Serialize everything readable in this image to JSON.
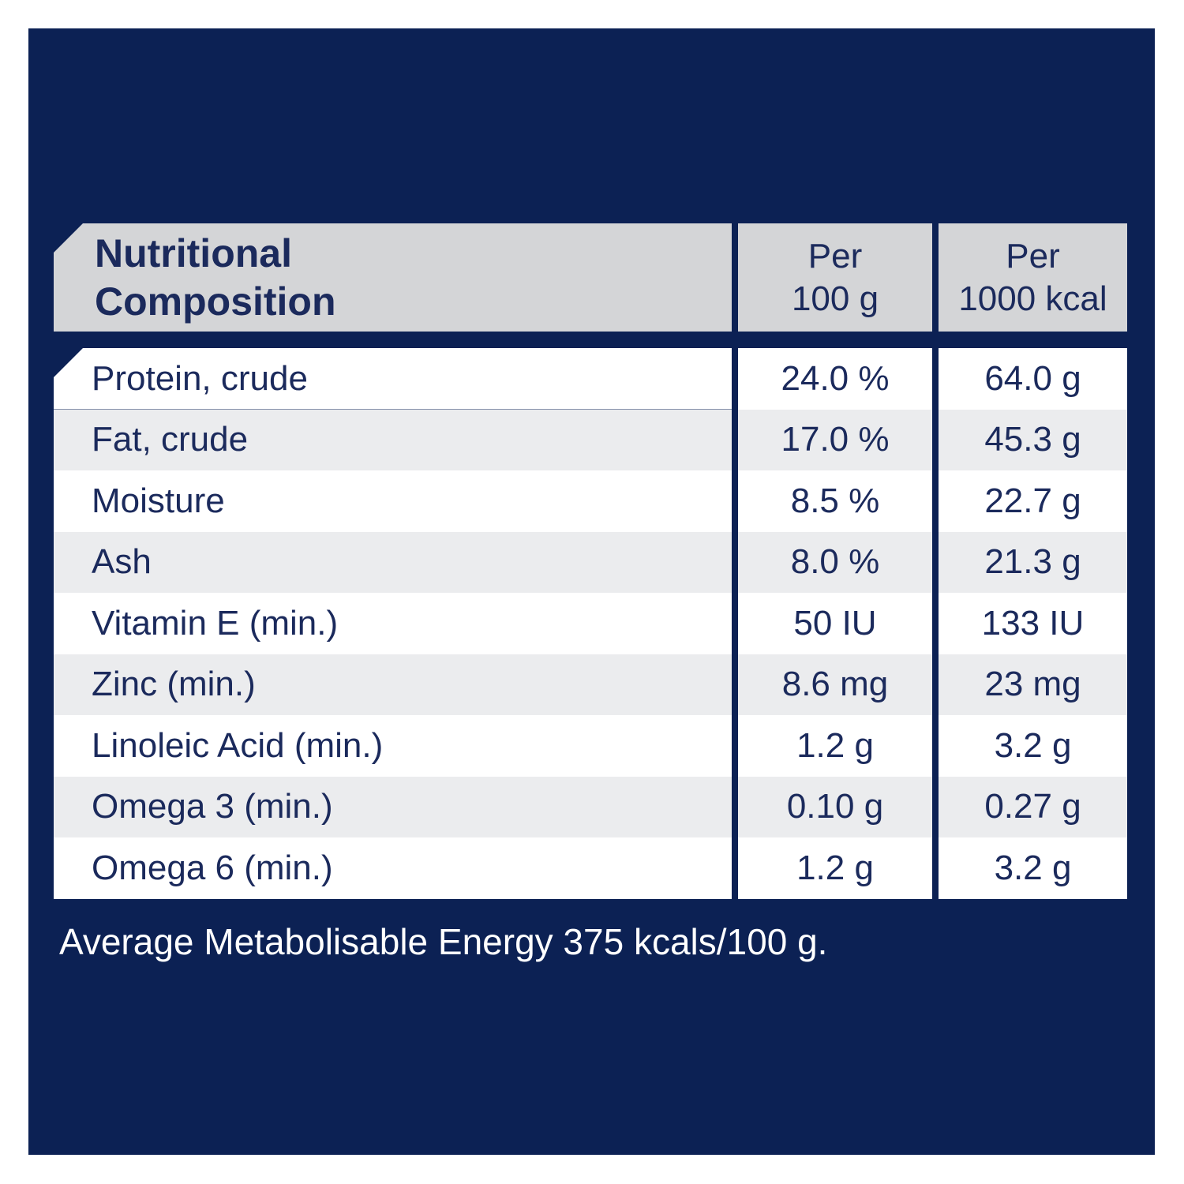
{
  "colors": {
    "panel_navy": "#0c2154",
    "text_navy": "#1b2a5c",
    "header_gray": "#d4d5d7",
    "row_alt_gray": "#ebecee",
    "row_white": "#ffffff",
    "footer_text": "#ffffff"
  },
  "table": {
    "title_line1": "Nutritional",
    "title_line2": "Composition",
    "col1_header_line1": "Per",
    "col1_header_line2": "100 g",
    "col2_header_line1": "Per",
    "col2_header_line2": "1000 kcal",
    "rows": [
      {
        "label": "Protein, crude",
        "per_100g": "24.0 %",
        "per_1000kcal": "64.0 g"
      },
      {
        "label": "Fat, crude",
        "per_100g": "17.0 %",
        "per_1000kcal": "45.3 g"
      },
      {
        "label": "Moisture",
        "per_100g": "8.5 %",
        "per_1000kcal": "22.7 g"
      },
      {
        "label": "Ash",
        "per_100g": "8.0 %",
        "per_1000kcal": "21.3 g"
      },
      {
        "label": "Vitamin E (min.)",
        "per_100g": "50 IU",
        "per_1000kcal": "133 IU"
      },
      {
        "label": "Zinc (min.)",
        "per_100g": "8.6 mg",
        "per_1000kcal": "23 mg"
      },
      {
        "label": "Linoleic Acid (min.)",
        "per_100g": "1.2 g",
        "per_1000kcal": "3.2 g"
      },
      {
        "label": "Omega 3 (min.)",
        "per_100g": "0.10 g",
        "per_1000kcal": "0.27 g"
      },
      {
        "label": "Omega 6 (min.)",
        "per_100g": "1.2 g",
        "per_1000kcal": "3.2 g"
      }
    ]
  },
  "footer": {
    "energy_note": "Average Metabolisable Energy 375 kcals/100 g."
  }
}
